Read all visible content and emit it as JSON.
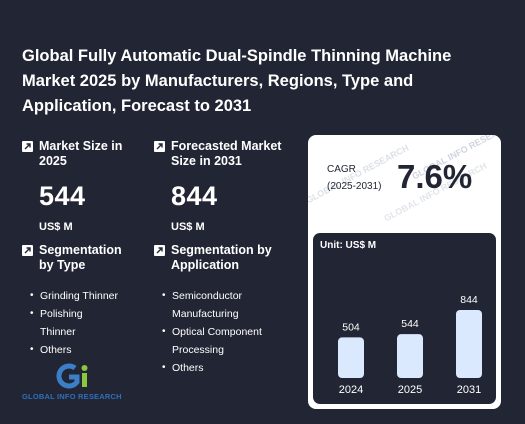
{
  "title": "Global Fully Automatic Dual-Spindle Thinning Machine Market 2025 by Manufacturers, Regions, Type and Application, Forecast to 2031",
  "metrics": {
    "market_size": {
      "label": "Market Size in 2025",
      "value": "544",
      "unit": "US$ M"
    },
    "forecast": {
      "label": "Forecasted Market Size in 2031",
      "value": "844",
      "unit": "US$ M"
    }
  },
  "segmentation_type": {
    "label": "Segmentation by Type",
    "items": [
      "Grinding Thinner",
      "Polishing Thinner",
      "Others"
    ]
  },
  "segmentation_application": {
    "label": "Segmentation by Application",
    "items": [
      "Semiconductor Manufacturing",
      "Optical Component Processing",
      "Others"
    ]
  },
  "cagr": {
    "label": "CAGR",
    "period": "(2025-2031)",
    "value": "7.6%"
  },
  "logo": {
    "text": "GLOBAL INFO RESEARCH",
    "mark": "Gi"
  },
  "watermark": "GLOBAL INFO RESEARCH",
  "chart_data": {
    "type": "bar",
    "unit_label": "Unit: US$ M",
    "categories": [
      "2024",
      "2025",
      "2031"
    ],
    "values": [
      504,
      544,
      844
    ],
    "colors": {
      "bar": "#dbe9ff",
      "text": "#ffffff"
    }
  }
}
